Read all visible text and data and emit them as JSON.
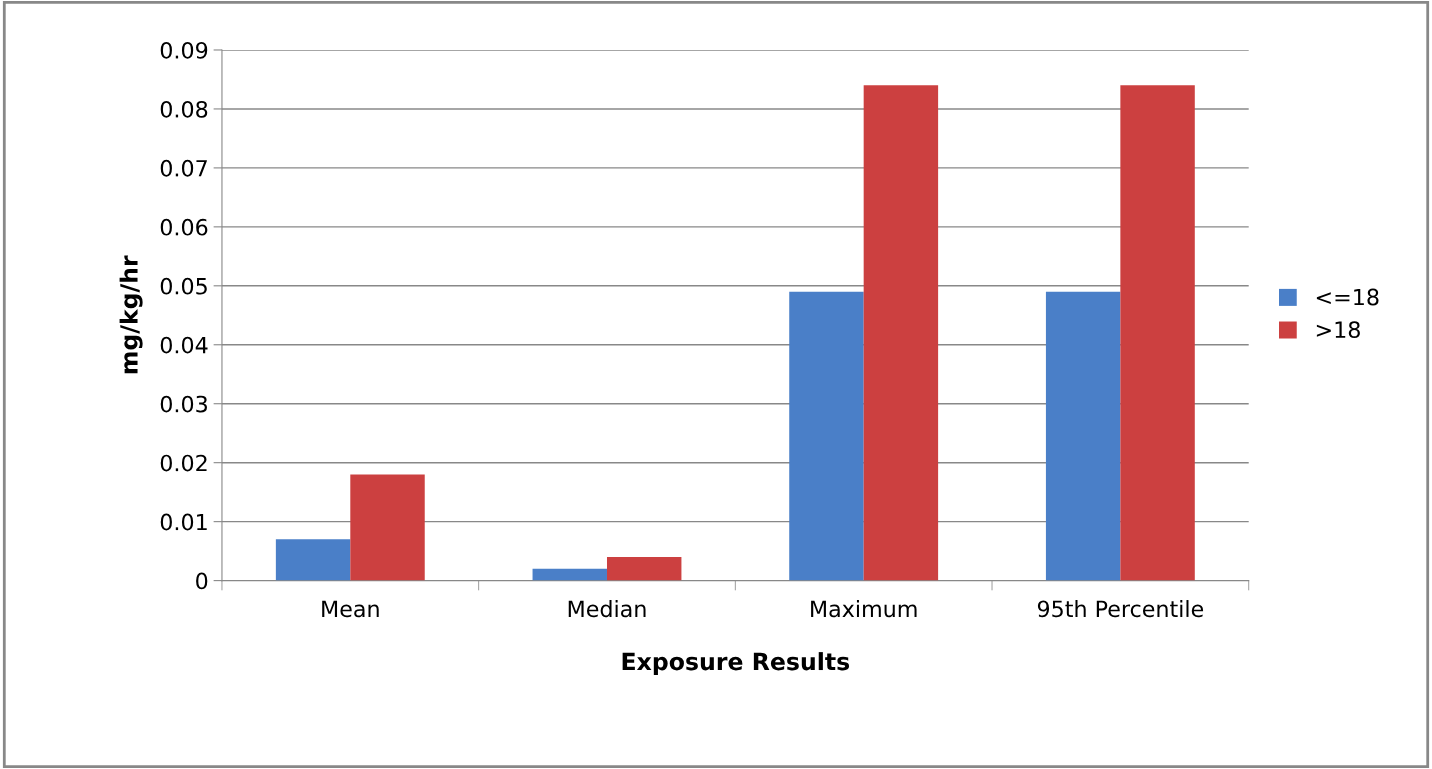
{
  "chart_data": {
    "type": "bar",
    "xlabel": "Exposure Results",
    "ylabel": "mg/kg/hr",
    "categories": [
      "Mean",
      "Median",
      "Maximum",
      "95th Percentile"
    ],
    "series": [
      {
        "name": "<=18",
        "color": "#4a7fc8",
        "values": [
          0.007,
          0.002,
          0.049,
          0.049
        ]
      },
      {
        "name": ">18",
        "color": "#cc4040",
        "values": [
          0.018,
          0.004,
          0.084,
          0.084
        ]
      }
    ],
    "ylim": [
      0,
      0.09
    ],
    "yticks": [
      0,
      0.01,
      0.02,
      0.03,
      0.04,
      0.05,
      0.06,
      0.07,
      0.08,
      0.09
    ],
    "grid": "y",
    "legend": "right"
  }
}
